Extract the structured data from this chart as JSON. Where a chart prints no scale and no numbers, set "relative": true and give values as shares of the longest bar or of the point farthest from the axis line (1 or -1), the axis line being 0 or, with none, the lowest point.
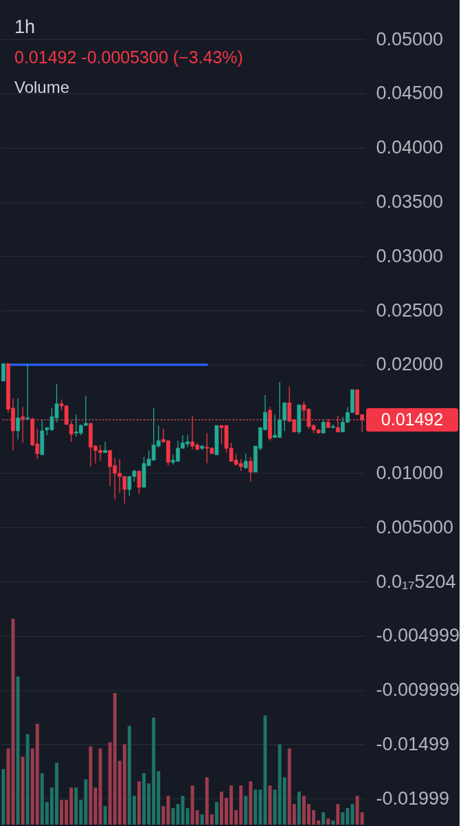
{
  "chart_data": [
    {
      "type": "candlestick",
      "title": "1h",
      "subtitle": "0.01492  -0.0005300 (−3.43%)",
      "categories": [
        null,
        null,
        null,
        null,
        null,
        null,
        null,
        null,
        null,
        null,
        null,
        null,
        null,
        null,
        null,
        null,
        null,
        null,
        null,
        null,
        null,
        null,
        null,
        null,
        null,
        null,
        null,
        null,
        null,
        null,
        null,
        null,
        null,
        null,
        null,
        null,
        null,
        null,
        null,
        null,
        null,
        null,
        null,
        null,
        null,
        null,
        null,
        null,
        null,
        null,
        null,
        null,
        null,
        null,
        null,
        null,
        null,
        null,
        null,
        null,
        null,
        null,
        null,
        null,
        null,
        null,
        null,
        null,
        null,
        null,
        null,
        null,
        null,
        null,
        null
      ],
      "ohlc": [
        [
          0.0185,
          0.0201,
          0.0185,
          0.0201
        ],
        [
          0.0201,
          0.0201,
          0.0156,
          0.0159
        ],
        [
          0.016,
          0.0169,
          0.0121,
          0.0139
        ],
        [
          0.0139,
          0.0169,
          0.0131,
          0.0151
        ],
        [
          0.0152,
          0.0161,
          0.0128,
          0.015
        ],
        [
          0.015,
          0.0201,
          0.0149,
          0.0151
        ],
        [
          0.015,
          0.0151,
          0.0125,
          0.0126
        ],
        [
          0.0127,
          0.0141,
          0.0113,
          0.0118
        ],
        [
          0.0117,
          0.0149,
          0.0117,
          0.0139
        ],
        [
          0.014,
          0.0142,
          0.0135,
          0.0142
        ],
        [
          0.014,
          0.016,
          0.0139,
          0.0152
        ],
        [
          0.0151,
          0.0182,
          0.0147,
          0.0164
        ],
        [
          0.0164,
          0.0168,
          0.0158,
          0.0162
        ],
        [
          0.0162,
          0.0163,
          0.0145,
          0.0145
        ],
        [
          0.0145,
          0.0148,
          0.0129,
          0.0136
        ],
        [
          0.0137,
          0.0154,
          0.0134,
          0.0138
        ],
        [
          0.0137,
          0.0145,
          0.0135,
          0.0144
        ],
        [
          0.0144,
          0.0171,
          0.0144,
          0.0146
        ],
        [
          0.0146,
          0.0146,
          0.0106,
          0.0124
        ],
        [
          0.0125,
          0.0126,
          0.0109,
          0.0121
        ],
        [
          0.0121,
          0.0126,
          0.0111,
          0.0119
        ],
        [
          0.0119,
          0.0129,
          0.0119,
          0.0121
        ],
        [
          0.0121,
          0.0121,
          0.0088,
          0.0106
        ],
        [
          0.0107,
          0.0114,
          0.0076,
          0.01
        ],
        [
          0.01,
          0.0113,
          0.0082,
          0.0097
        ],
        [
          0.0097,
          0.0097,
          0.0072,
          0.0085
        ],
        [
          0.0085,
          0.0097,
          0.0079,
          0.0097
        ],
        [
          0.0097,
          0.0103,
          0.0092,
          0.0102
        ],
        [
          0.0102,
          0.0102,
          0.0081,
          0.0087
        ],
        [
          0.0087,
          0.0115,
          0.0087,
          0.0109
        ],
        [
          0.0107,
          0.0121,
          0.0107,
          0.0113
        ],
        [
          0.0112,
          0.016,
          0.0112,
          0.0126
        ],
        [
          0.0125,
          0.0144,
          0.0124,
          0.013
        ],
        [
          0.0131,
          0.0141,
          0.0128,
          0.0129
        ],
        [
          0.013,
          0.013,
          0.0107,
          0.011
        ],
        [
          0.011,
          0.0117,
          0.0108,
          0.0112
        ],
        [
          0.0111,
          0.013,
          0.0111,
          0.0123
        ],
        [
          0.0123,
          0.0135,
          0.0123,
          0.0128
        ],
        [
          0.0127,
          0.0135,
          0.0124,
          0.0129
        ],
        [
          0.0129,
          0.0153,
          0.0122,
          0.0125
        ],
        [
          0.0126,
          0.0128,
          0.0121,
          0.0122
        ],
        [
          0.0123,
          0.0126,
          0.0121,
          0.0125
        ],
        [
          0.0124,
          0.0137,
          0.0109,
          0.0123
        ],
        [
          0.0123,
          0.0124,
          0.0118,
          0.0118
        ],
        [
          0.0117,
          0.0144,
          0.0117,
          0.0144
        ],
        [
          0.0144,
          0.0144,
          0.0127,
          0.0142
        ],
        [
          0.0144,
          0.0144,
          0.0119,
          0.0123
        ],
        [
          0.0123,
          0.0128,
          0.0111,
          0.0111
        ],
        [
          0.0112,
          0.0118,
          0.0107,
          0.0108
        ],
        [
          0.0109,
          0.0113,
          0.0102,
          0.0106
        ],
        [
          0.0105,
          0.0118,
          0.0104,
          0.0111
        ],
        [
          0.0111,
          0.0115,
          0.0092,
          0.0101
        ],
        [
          0.0101,
          0.0125,
          0.0101,
          0.0125
        ],
        [
          0.0123,
          0.0142,
          0.0121,
          0.0142
        ],
        [
          0.014,
          0.0172,
          0.014,
          0.0156
        ],
        [
          0.0158,
          0.0161,
          0.013,
          0.0132
        ],
        [
          0.0133,
          0.0154,
          0.0133,
          0.0135
        ],
        [
          0.0133,
          0.0184,
          0.0133,
          0.0149
        ],
        [
          0.0149,
          0.0165,
          0.0139,
          0.0165
        ],
        [
          0.0165,
          0.018,
          0.0147,
          0.0148
        ],
        [
          0.0149,
          0.015,
          0.0138,
          0.0138
        ],
        [
          0.0138,
          0.0163,
          0.0136,
          0.0163
        ],
        [
          0.0163,
          0.0166,
          0.0149,
          0.0158
        ],
        [
          0.0159,
          0.016,
          0.0141,
          0.0143
        ],
        [
          0.0144,
          0.0145,
          0.0137,
          0.014
        ],
        [
          0.014,
          0.014,
          0.0137,
          0.0137
        ],
        [
          0.0137,
          0.0149,
          0.0137,
          0.0147
        ],
        [
          0.0147,
          0.015,
          0.0142,
          0.0142
        ],
        [
          0.0142,
          0.0145,
          0.0142,
          0.0143
        ],
        [
          0.0142,
          0.0153,
          0.0138,
          0.0138
        ],
        [
          0.0138,
          0.0152,
          0.0138,
          0.0147
        ],
        [
          0.0147,
          0.0161,
          0.0147,
          0.0156
        ],
        [
          0.0156,
          0.0177,
          0.0156,
          0.0177
        ],
        [
          0.0177,
          0.0177,
          0.0154,
          0.0154
        ],
        [
          0.0154,
          0.0154,
          0.0138,
          0.01492
        ]
      ],
      "colors": [
        "#22ab94",
        "#f23645",
        "#f23645",
        "#22ab94",
        "#f23645",
        "#22ab94",
        "#f23645",
        "#f23645",
        "#22ab94",
        "#22ab94",
        "#22ab94",
        "#22ab94",
        "#f23645",
        "#f23645",
        "#f23645",
        "#22ab94",
        "#22ab94",
        "#22ab94",
        "#f23645",
        "#f23645",
        "#f23645",
        "#22ab94",
        "#f23645",
        "#f23645",
        "#f23645",
        "#f23645",
        "#22ab94",
        "#22ab94",
        "#f23645",
        "#22ab94",
        "#22ab94",
        "#22ab94",
        "#22ab94",
        "#f23645",
        "#f23645",
        "#22ab94",
        "#22ab94",
        "#22ab94",
        "#22ab94",
        "#f23645",
        "#f23645",
        "#22ab94",
        "#f23645",
        "#f23645",
        "#22ab94",
        "#f23645",
        "#f23645",
        "#f23645",
        "#f23645",
        "#f23645",
        "#22ab94",
        "#f23645",
        "#22ab94",
        "#22ab94",
        "#22ab94",
        "#f23645",
        "#22ab94",
        "#22ab94",
        "#22ab94",
        "#f23645",
        "#f23645",
        "#22ab94",
        "#f23645",
        "#f23645",
        "#f23645",
        "#f23645",
        "#22ab94",
        "#f23645",
        "#22ab94",
        "#f23645",
        "#22ab94",
        "#22ab94",
        "#22ab94",
        "#f23645",
        "#f23645"
      ],
      "series": [
        {
          "type": "line",
          "color": "#2962ff",
          "values": [
            null,
            0.02,
            0.02,
            0.02,
            0.02,
            0.02,
            0.02,
            0.02,
            0.02,
            0.02,
            0.02,
            0.02,
            0.02,
            0.02,
            0.02,
            0.02,
            0.02,
            0.02,
            0.02,
            0.02,
            0.02,
            0.02,
            0.02,
            0.02,
            0.02,
            0.02,
            0.02,
            0.02,
            0.02,
            0.02,
            0.02,
            0.02,
            0.02,
            0.02,
            0.02,
            0.02,
            0.02,
            0.02,
            0.02,
            0.02,
            0.02,
            0.02,
            0.02,
            null,
            null,
            null,
            null,
            null,
            null,
            null,
            null,
            null,
            null,
            null,
            null,
            null,
            null,
            null,
            null,
            null,
            null,
            null,
            null,
            null,
            null,
            null,
            null,
            null,
            null,
            null,
            null,
            null,
            null,
            null,
            null
          ]
        }
      ],
      "ylim": [
        -0.0224,
        0.0535
      ],
      "yticks": [
        {
          "value": 0.05,
          "label": "0.05000"
        },
        {
          "value": 0.045,
          "label": "0.04500"
        },
        {
          "value": 0.04,
          "label": "0.04000"
        },
        {
          "value": 0.035,
          "label": "0.03500"
        },
        {
          "value": 0.03,
          "label": "0.03000"
        },
        {
          "value": 0.025,
          "label": "0.02500"
        },
        {
          "value": 0.02,
          "label": "0.02000"
        },
        {
          "value": 0.015,
          "label": null
        },
        {
          "value": 0.01,
          "label": "0.01000"
        },
        {
          "value": 0.005,
          "label": "0.005000"
        },
        {
          "value": 0,
          "label": "0.0₁₇5204"
        },
        -0.004999,
        -0.009999,
        -0.01499,
        -0.01999
      ],
      "grid": "y",
      "ref_lines": [
        {
          "axis": "y",
          "value": 0.01492,
          "label": "0.01492",
          "color": "#f23645",
          "line_style": "dotted"
        }
      ]
    },
    {
      "type": "bar",
      "title": "Volume",
      "relative": true,
      "categories": [
        null,
        null,
        null,
        null,
        null,
        null,
        null,
        null,
        null,
        null,
        null,
        null,
        null,
        null,
        null,
        null,
        null,
        null,
        null,
        null,
        null,
        null,
        null,
        null,
        null,
        null,
        null,
        null,
        null,
        null,
        null,
        null,
        null,
        null,
        null,
        null,
        null,
        null,
        null,
        null,
        null,
        null,
        null,
        null,
        null,
        null,
        null,
        null,
        null,
        null,
        null,
        null,
        null,
        null,
        null,
        null,
        null,
        null,
        null,
        null,
        null,
        null,
        null,
        null,
        null,
        null,
        null,
        null,
        null,
        null,
        null,
        null,
        null,
        null,
        null
      ],
      "values": [
        0.27,
        0.37,
        1,
        0.72,
        0.33,
        0.44,
        0.37,
        0.49,
        0.25,
        0.11,
        0.18,
        0.3,
        0.12,
        0.12,
        0.18,
        0.18,
        0.12,
        0.22,
        0.38,
        0.18,
        0.37,
        0.09,
        0.4,
        0.64,
        0.31,
        0.39,
        0.48,
        0.14,
        0.21,
        0.25,
        0.2,
        0.52,
        0.26,
        0.09,
        0.14,
        0.08,
        0.1,
        0.14,
        0.08,
        0.19,
        0.07,
        0.05,
        0.23,
        0.05,
        0.11,
        0.16,
        0.13,
        0.19,
        0.07,
        0.19,
        0.14,
        0.21,
        0.17,
        0.17,
        0.53,
        0.19,
        0.17,
        0.39,
        0.23,
        0.37,
        0.1,
        0.16,
        0.14,
        0.1,
        0.07,
        0.02,
        0.06,
        0.03,
        0.02,
        0.1,
        0.06,
        0.08,
        0.1,
        0.14,
        0.06
      ],
      "colors": [
        "#1e7466",
        "#9c3c4d",
        "#9c3c4d",
        "#1e7466",
        "#9c3c4d",
        "#1e7466",
        "#9c3c4d",
        "#9c3c4d",
        "#1e7466",
        "#1e7466",
        "#1e7466",
        "#1e7466",
        "#9c3c4d",
        "#9c3c4d",
        "#9c3c4d",
        "#1e7466",
        "#1e7466",
        "#1e7466",
        "#9c3c4d",
        "#9c3c4d",
        "#9c3c4d",
        "#1e7466",
        "#9c3c4d",
        "#9c3c4d",
        "#9c3c4d",
        "#9c3c4d",
        "#1e7466",
        "#1e7466",
        "#9c3c4d",
        "#1e7466",
        "#1e7466",
        "#1e7466",
        "#1e7466",
        "#9c3c4d",
        "#9c3c4d",
        "#1e7466",
        "#1e7466",
        "#1e7466",
        "#1e7466",
        "#9c3c4d",
        "#9c3c4d",
        "#1e7466",
        "#9c3c4d",
        "#9c3c4d",
        "#1e7466",
        "#9c3c4d",
        "#9c3c4d",
        "#9c3c4d",
        "#9c3c4d",
        "#9c3c4d",
        "#1e7466",
        "#9c3c4d",
        "#1e7466",
        "#1e7466",
        "#1e7466",
        "#9c3c4d",
        "#1e7466",
        "#1e7466",
        "#1e7466",
        "#9c3c4d",
        "#9c3c4d",
        "#1e7466",
        "#9c3c4d",
        "#9c3c4d",
        "#9c3c4d",
        "#9c3c4d",
        "#1e7466",
        "#9c3c4d",
        "#1e7466",
        "#9c3c4d",
        "#1e7466",
        "#1e7466",
        "#1e7466",
        "#9c3c4d",
        "#9c3c4d"
      ]
    }
  ]
}
